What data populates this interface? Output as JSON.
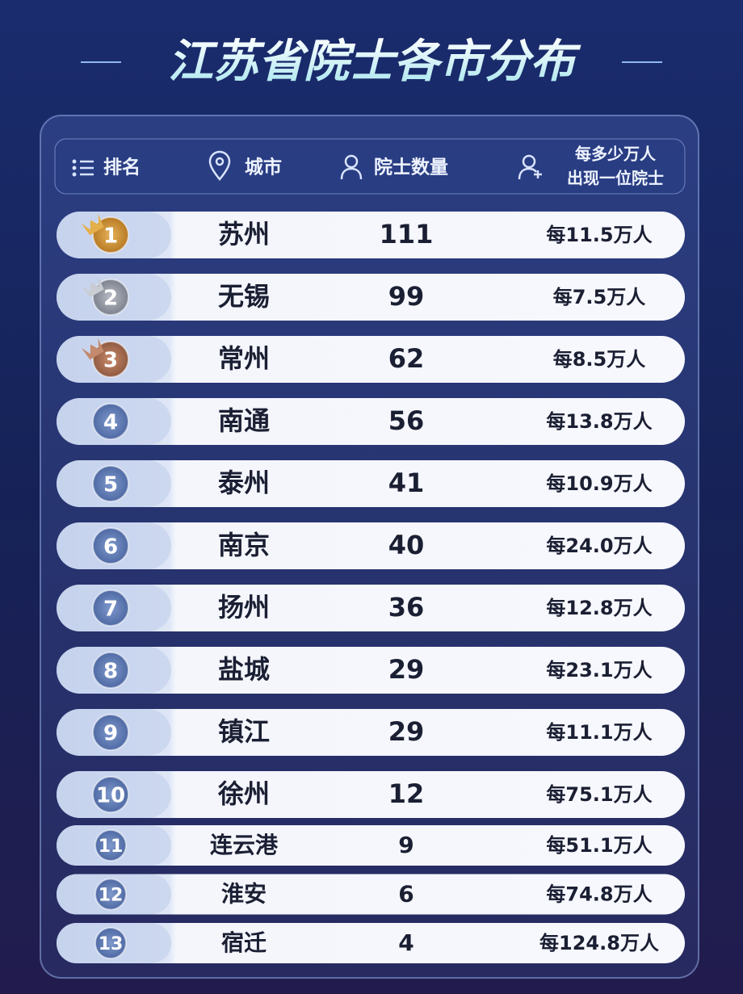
{
  "title": "江苏省院士各市分布",
  "header": {
    "rank": "排名",
    "city": "城市",
    "count": "院士数量",
    "per_capita": [
      "每多少万人",
      "出现一位院士"
    ]
  },
  "rows": [
    {
      "rank": 1,
      "city": "苏州",
      "count": 111,
      "per_capita": "每11.5万人"
    },
    {
      "rank": 2,
      "city": "无锡",
      "count": 99,
      "per_capita": "每7.5万人"
    },
    {
      "rank": 3,
      "city": "常州",
      "count": 62,
      "per_capita": "每8.5万人"
    },
    {
      "rank": 4,
      "city": "南通",
      "count": 56,
      "per_capita": "每13.8万人"
    },
    {
      "rank": 5,
      "city": "泰州",
      "count": 41,
      "per_capita": "每10.9万人"
    },
    {
      "rank": 6,
      "city": "南京",
      "count": 40,
      "per_capita": "每24.0万人"
    },
    {
      "rank": 7,
      "city": "扬州",
      "count": 36,
      "per_capita": "每12.8万人"
    },
    {
      "rank": 8,
      "city": "盐城",
      "count": 29,
      "per_capita": "每23.1万人"
    },
    {
      "rank": 9,
      "city": "镇江",
      "count": 29,
      "per_capita": "每11.1万人"
    },
    {
      "rank": 10,
      "city": "徐州",
      "count": 12,
      "per_capita": "每75.1万人"
    },
    {
      "rank": 11,
      "city": "连云港",
      "count": 9,
      "per_capita": "每51.1万人"
    },
    {
      "rank": 12,
      "city": "淮安",
      "count": 6,
      "per_capita": "每74.8万人"
    },
    {
      "rank": 13,
      "city": "宿迁",
      "count": 4,
      "per_capita": "每124.8万人"
    }
  ]
}
